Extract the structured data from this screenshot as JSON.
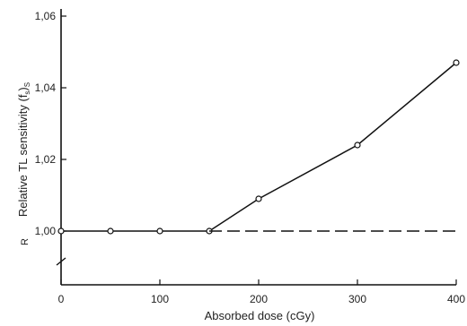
{
  "chart_data": {
    "type": "line",
    "xlabel": "Absorbed dose (cGy)",
    "ylabel": "Relative TL sensitivity (f",
    "ylabel_sub": "s",
    "ylabel_close": ")",
    "ylabel_sub2": "S",
    "y_side_label": "R",
    "xlim": [
      0,
      400
    ],
    "ylim": [
      0.985,
      1.06
    ],
    "x_ticks": [
      0,
      100,
      200,
      300,
      400
    ],
    "x_tick_labels": [
      "0",
      "100",
      "200",
      "300",
      "400"
    ],
    "y_ticks": [
      1.0,
      1.02,
      1.04,
      1.06
    ],
    "y_tick_labels": [
      "1,00",
      "1,02",
      "1,04",
      "1,06"
    ],
    "series": [
      {
        "style": "solid",
        "markers": "open-circle",
        "x": [
          0,
          50,
          100,
          150,
          200,
          300,
          400
        ],
        "y": [
          1.0,
          1.0,
          1.0,
          1.0,
          1.009,
          1.024,
          1.047
        ]
      },
      {
        "style": "dashed",
        "x": [
          150,
          400
        ],
        "y": [
          1.0,
          1.0
        ]
      }
    ],
    "grid": false,
    "axis_break": true
  }
}
